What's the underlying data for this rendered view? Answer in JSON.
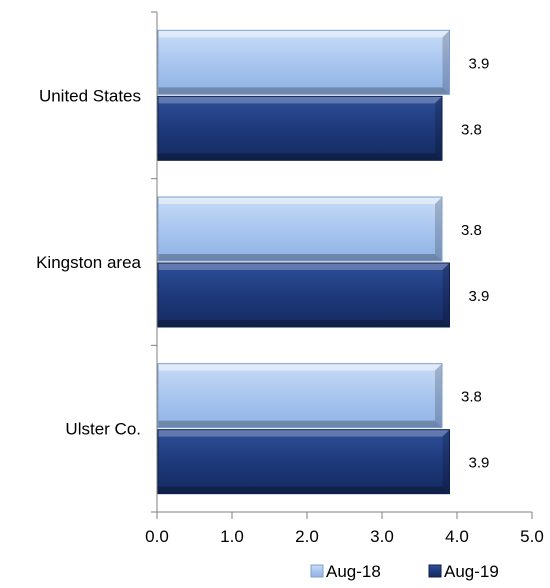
{
  "chart_data": {
    "type": "bar",
    "orientation": "horizontal",
    "categories": [
      "United States",
      "Kingston area",
      "Ulster Co."
    ],
    "series": [
      {
        "name": "Aug-18",
        "values": [
          3.9,
          3.8,
          3.8
        ],
        "color": "#a9c6ef"
      },
      {
        "name": "Aug-19",
        "values": [
          3.8,
          3.9,
          3.9
        ],
        "color": "#1f3a7c"
      }
    ],
    "xlim": [
      0,
      5
    ],
    "xticks": [
      "0.0",
      "1.0",
      "2.0",
      "3.0",
      "4.0",
      "5.0"
    ],
    "data_labels": [
      [
        "3.9",
        "3.8",
        "3.8"
      ],
      [
        "3.8",
        "3.9",
        "3.9"
      ]
    ],
    "grid": false,
    "legend_position": "bottom-right"
  }
}
